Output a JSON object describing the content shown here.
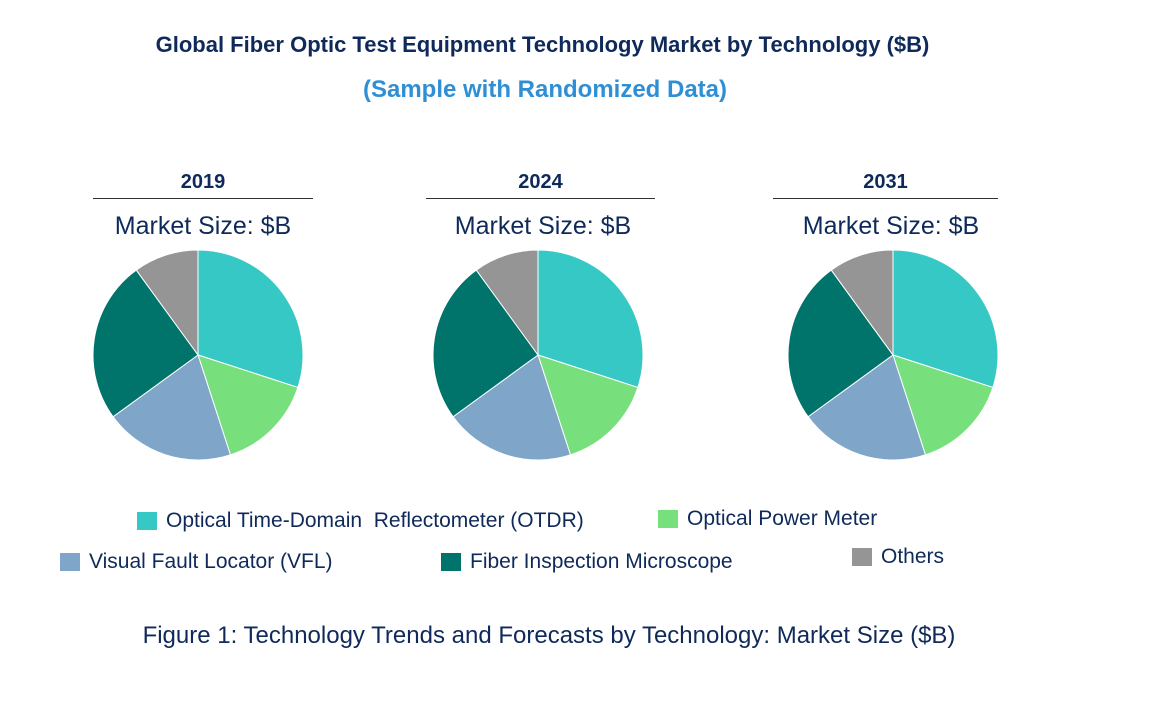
{
  "chart_data": {
    "type": "pie",
    "title": "Global Fiber Optic Test Equipment Technology Market by Technology ($B)",
    "subtitle": "(Sample with Randomized Data)",
    "caption": "Figure 1: Technology Trends and Forecasts by Technology: Market Size ($B)",
    "categories": [
      "Optical Time-Domain  Reflectometer (OTDR)",
      "Optical Power Meter",
      "Visual Fault Locator (VFL)",
      "Fiber Inspection Microscope",
      "Others"
    ],
    "colors": [
      "#36c8c4",
      "#77e07c",
      "#7fa6c9",
      "#00736a",
      "#959595"
    ],
    "legend_position": "bottom",
    "pies": [
      {
        "year": "2019",
        "label": "Market Size: $B",
        "values": [
          30,
          15,
          20,
          25,
          10
        ]
      },
      {
        "year": "2024",
        "label": "Market Size: $B",
        "values": [
          30,
          15,
          20,
          25,
          10
        ]
      },
      {
        "year": "2031",
        "label": "Market Size: $B",
        "values": [
          30,
          15,
          20,
          25,
          10
        ]
      }
    ]
  }
}
